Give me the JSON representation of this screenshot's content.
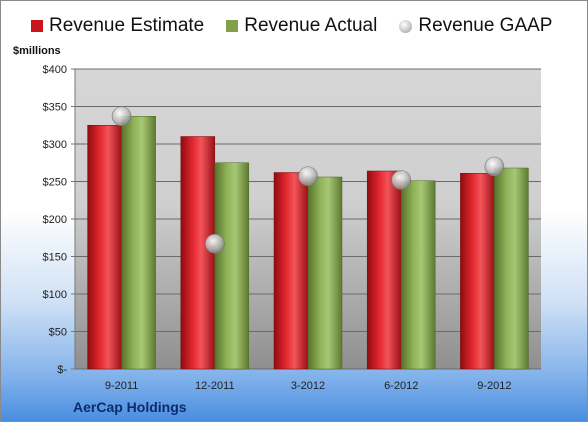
{
  "legend": {
    "estimate": "Revenue Estimate",
    "actual": "Revenue Actual",
    "gaap": "Revenue GAAP"
  },
  "unit_label": "$millions",
  "company": "AerCap Holdings",
  "colors": {
    "estimate": "#c8141c",
    "actual": "#7ea14a",
    "gaap": "#a8a8a8"
  },
  "chart_data": {
    "type": "bar",
    "categories": [
      "9-2011",
      "12-2011",
      "3-2012",
      "6-2012",
      "9-2012"
    ],
    "series": [
      {
        "name": "Revenue Estimate",
        "type": "bar",
        "values": [
          325,
          310,
          262,
          264,
          261
        ]
      },
      {
        "name": "Revenue Actual",
        "type": "bar",
        "values": [
          337,
          275,
          256,
          251,
          268
        ]
      },
      {
        "name": "Revenue GAAP",
        "type": "scatter",
        "values": [
          337,
          167,
          257,
          252,
          270
        ]
      }
    ],
    "ylabel": "$millions",
    "ylim": [
      0,
      400
    ],
    "yticks": [
      0,
      50,
      100,
      150,
      200,
      250,
      300,
      350,
      400
    ],
    "ytick_labels": [
      "$-",
      "$50",
      "$100",
      "$150",
      "$200",
      "$250",
      "$300",
      "$350",
      "$400"
    ],
    "grid": true,
    "legend_position": "top"
  }
}
